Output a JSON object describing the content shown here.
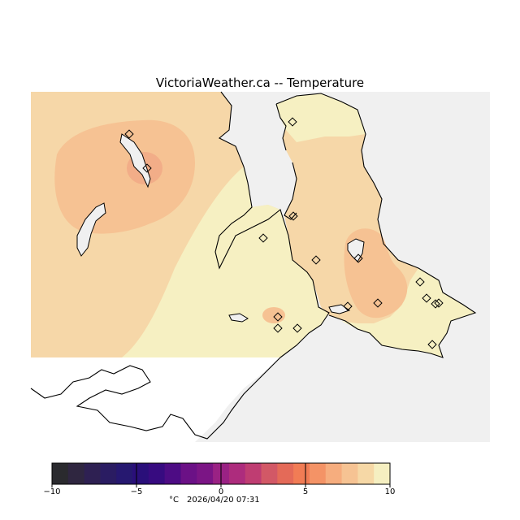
{
  "title": "VictoriaWeather.ca -- Temperature",
  "colorbar": {
    "min": -10,
    "max": 10,
    "tick_values": [
      -10,
      -5,
      0,
      5,
      10
    ],
    "tick_labels": [
      "−10",
      "−5",
      "0",
      "5",
      "10"
    ],
    "unit_label": "°C",
    "timestamp": "2026/04/20 07:31",
    "colors": [
      "#2a2a2e",
      "#2f2640",
      "#2e2052",
      "#2a1c62",
      "#261870",
      "#2a0f7a",
      "#370b80",
      "#4d0c84",
      "#6b1186",
      "#7b1585",
      "#9a2284",
      "#ad2c7d",
      "#bf3d72",
      "#d25866",
      "#e46a58",
      "#f17c55",
      "#f49366",
      "#f6ad7e",
      "#f6c393",
      "#f6d8a6",
      "#f5efc1"
    ]
  },
  "colors": {
    "land_warm": "#f6d7a8",
    "land_cool": "#f6f0c2",
    "land_mid": "#f6c293",
    "land_hot": "#f2ad88",
    "sea": "#f0f0f0",
    "coast": "#000000"
  },
  "map": {
    "station_count": 17
  }
}
